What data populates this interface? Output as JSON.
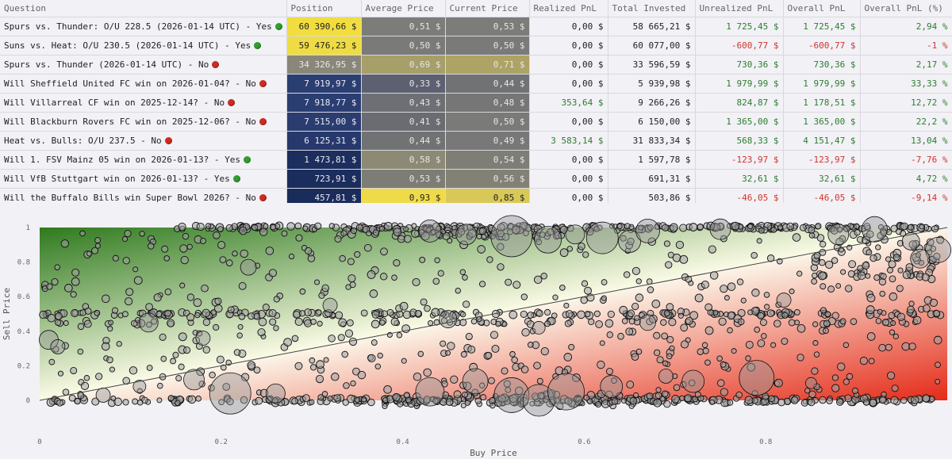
{
  "colors": {
    "positive": "#2e7d2e",
    "negative": "#d0342c",
    "yes_dot": "#2e9e2e",
    "no_dot": "#cc2b22"
  },
  "table": {
    "headers": [
      "Question",
      "Position",
      "Average Price",
      "Current Price",
      "Realized PnL",
      "Total Invested",
      "Unrealized PnL",
      "Overall PnL",
      "Overall PnL (%)"
    ],
    "rows": [
      {
        "question": "Spurs vs. Thunder: O/U 228.5 (2026-01-14 UTC) - Yes",
        "outcome": "yes",
        "position": "60 390,66 $",
        "position_bg": "#f2dd40",
        "position_color": "#222",
        "avg_price": "0,51 $",
        "avg_bg": "#7c7c78",
        "current_price": "0,53 $",
        "cur_bg": "#7c7c78",
        "realized": "0,00 $",
        "total_invested": "58 665,21 $",
        "unrealized": "1 725,45 $",
        "overall": "1 725,45 $",
        "overall_pct": "2,94 %",
        "sign": "pos"
      },
      {
        "question": "Suns vs. Heat: O/U 230.5 (2026-01-14 UTC) - Yes",
        "outcome": "yes",
        "position": "59 476,23 $",
        "position_bg": "#efdc45",
        "position_color": "#222",
        "avg_price": "0,50 $",
        "avg_bg": "#7a7a78",
        "current_price": "0,50 $",
        "cur_bg": "#7a7a78",
        "realized": "0,00 $",
        "total_invested": "60 077,00 $",
        "unrealized": "-600,77 $",
        "overall": "-600,77 $",
        "overall_pct": "-1 %",
        "sign": "neg"
      },
      {
        "question": "Spurs vs. Thunder (2026-01-14 UTC) - No",
        "outcome": "no",
        "position": "34 326,95 $",
        "position_bg": "#8a877a",
        "position_color": "#e8e8e8",
        "avg_price": "0,69 $",
        "avg_bg": "#a69f6a",
        "current_price": "0,71 $",
        "cur_bg": "#aca365",
        "realized": "0,00 $",
        "total_invested": "33 596,59 $",
        "unrealized": "730,36 $",
        "overall": "730,36 $",
        "overall_pct": "2,17 %",
        "sign": "pos"
      },
      {
        "question": "Will Sheffield United FC win on 2026-01-04? - No",
        "outcome": "no",
        "position": "7 919,97 $",
        "position_bg": "#2b3e72",
        "position_color": "#e8e8f0",
        "avg_price": "0,33 $",
        "avg_bg": "#5c6070",
        "current_price": "0,44 $",
        "cur_bg": "#707274",
        "realized": "0,00 $",
        "total_invested": "5 939,98 $",
        "unrealized": "1 979,99 $",
        "overall": "1 979,99 $",
        "overall_pct": "33,33 %",
        "sign": "pos"
      },
      {
        "question": "Will Villarreal CF win on 2025-12-14? - No",
        "outcome": "no",
        "position": "7 918,77 $",
        "position_bg": "#2b3e72",
        "position_color": "#e8e8f0",
        "avg_price": "0,43 $",
        "avg_bg": "#6d6f74",
        "current_price": "0,48 $",
        "cur_bg": "#767676",
        "realized": "353,64 $",
        "realized_sign": "pos",
        "total_invested": "9 266,26 $",
        "unrealized": "824,87 $",
        "overall": "1 178,51 $",
        "overall_pct": "12,72 %",
        "sign": "pos"
      },
      {
        "question": "Will Blackburn Rovers FC win on 2025-12-06? - No",
        "outcome": "no",
        "position": "7 515,00 $",
        "position_bg": "#2a3c70",
        "position_color": "#e8e8f0",
        "avg_price": "0,41 $",
        "avg_bg": "#6a6c72",
        "current_price": "0,50 $",
        "cur_bg": "#7a7a78",
        "realized": "0,00 $",
        "total_invested": "6 150,00 $",
        "unrealized": "1 365,00 $",
        "overall": "1 365,00 $",
        "overall_pct": "22,2 %",
        "sign": "pos"
      },
      {
        "question": "Heat vs. Bulls: O/U 237.5 - No",
        "outcome": "no",
        "position": "6 125,31 $",
        "position_bg": "#27386c",
        "position_color": "#e8e8f0",
        "avg_price": "0,44 $",
        "avg_bg": "#707274",
        "current_price": "0,49 $",
        "cur_bg": "#787878",
        "realized": "3 583,14 $",
        "realized_sign": "pos",
        "total_invested": "31 833,34 $",
        "unrealized": "568,33 $",
        "overall": "4 151,47 $",
        "overall_pct": "13,04 %",
        "sign": "pos"
      },
      {
        "question": "Will 1. FSV Mainz 05 win on 2026-01-13? - Yes",
        "outcome": "yes",
        "position": "1 473,81 $",
        "position_bg": "#1c2e5e",
        "position_color": "#e8e8f0",
        "avg_price": "0,58 $",
        "avg_bg": "#8c8a74",
        "current_price": "0,54 $",
        "cur_bg": "#7f7e76",
        "realized": "0,00 $",
        "total_invested": "1 597,78 $",
        "unrealized": "-123,97 $",
        "overall": "-123,97 $",
        "overall_pct": "-7,76 %",
        "sign": "neg"
      },
      {
        "question": "Will VfB Stuttgart win on 2026-01-13? - Yes",
        "outcome": "yes",
        "position": "723,91 $",
        "position_bg": "#1b2d5c",
        "position_color": "#e8e8f0",
        "avg_price": "0,53 $",
        "avg_bg": "#7d7d76",
        "current_price": "0,56 $",
        "cur_bg": "#838176",
        "realized": "0,00 $",
        "total_invested": "691,31 $",
        "unrealized": "32,61 $",
        "overall": "32,61 $",
        "overall_pct": "4,72 %",
        "sign": "pos"
      },
      {
        "question": "Will the Buffalo Bills win Super Bowl 2026? - No",
        "outcome": "no",
        "position": "457,81 $",
        "position_bg": "#1a2c5a",
        "position_color": "#e8e8f0",
        "avg_price": "0,93 $",
        "avg_bg": "#efdb4a",
        "avg_color": "#222",
        "current_price": "0,85 $",
        "cur_bg": "#d8c858",
        "cur_color": "#222",
        "realized": "0,00 $",
        "total_invested": "503,86 $",
        "unrealized": "-46,05 $",
        "overall": "-46,05 $",
        "overall_pct": "-9,14 %",
        "sign": "neg"
      }
    ]
  },
  "chart_data": {
    "type": "scatter",
    "xlabel": "Buy Price",
    "ylabel": "Sell Price",
    "xlim": [
      0,
      1
    ],
    "ylim": [
      0,
      1
    ],
    "x_ticks": [
      "0",
      "0.2",
      "0.4",
      "0.6",
      "0.8"
    ],
    "y_ticks": [
      "0",
      "0.2",
      "0.4",
      "0.6",
      "0.8",
      "1"
    ],
    "reference_line": [
      [
        0,
        0
      ],
      [
        1,
        1
      ]
    ],
    "background": "gradient green (sell > buy) to red (sell < buy)",
    "note": "approximately 2000 circular markers, size proportional to trade size; clusters at sell price 0, 0.5 and 1"
  }
}
